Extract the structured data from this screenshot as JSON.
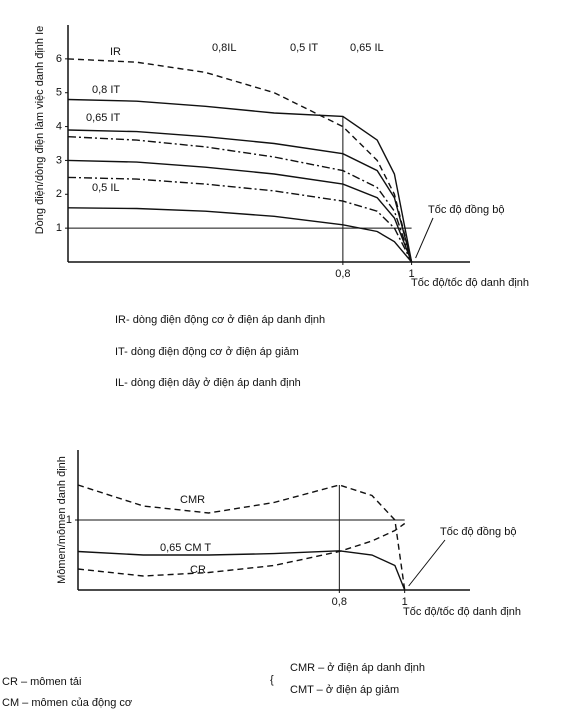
{
  "chart_data": [
    {
      "type": "line",
      "ylabel": "Dòng điện/dòng điện làm việc danh định Ie",
      "xlabel": "Tốc độ/tốc độ danh định",
      "annotation": "Tốc độ đồng bộ",
      "x": [
        0,
        0.2,
        0.4,
        0.6,
        0.8,
        0.9,
        0.95,
        1
      ],
      "xlim": [
        0,
        1.17
      ],
      "ylim": [
        0,
        7
      ],
      "xticks": [
        {
          "value": 0.8,
          "label": "0,8"
        },
        1
      ],
      "yticks": [
        1,
        2,
        3,
        4,
        5,
        6
      ],
      "series": [
        {
          "name": "IR",
          "color": "#111",
          "line_style": "dashed",
          "values": [
            6,
            5.9,
            5.6,
            5.0,
            4.0,
            3.0,
            2.0,
            0
          ]
        },
        {
          "name": "0,8 IT",
          "color": "#111",
          "line_style": "solid",
          "values": [
            4.8,
            4.75,
            4.6,
            4.4,
            4.3,
            3.6,
            2.6,
            0
          ]
        },
        {
          "name": "0,65 IT",
          "color": "#111",
          "line_style": "solid",
          "values": [
            3.9,
            3.85,
            3.7,
            3.5,
            3.2,
            2.7,
            1.9,
            0
          ]
        },
        {
          "name": "0,8IL",
          "color": "#111",
          "line_style": "dashdot",
          "values": [
            3.7,
            3.6,
            3.4,
            3.1,
            2.7,
            2.2,
            1.5,
            0
          ]
        },
        {
          "name": "0,5 IT",
          "color": "#111",
          "line_style": "solid",
          "values": [
            3.0,
            2.95,
            2.8,
            2.6,
            2.3,
            1.9,
            1.3,
            0
          ]
        },
        {
          "name": "0,65 IL",
          "color": "#111",
          "line_style": "dashdot",
          "values": [
            2.5,
            2.45,
            2.3,
            2.1,
            1.8,
            1.5,
            1.0,
            0
          ]
        },
        {
          "name": "0,5 IL",
          "color": "#111",
          "line_style": "solid",
          "values": [
            1.6,
            1.58,
            1.5,
            1.35,
            1.1,
            0.9,
            0.6,
            0
          ]
        }
      ],
      "notes": [
        "IR- dòng điện động cơ ở điện áp danh định",
        "IT- dòng điện động cơ ở điện áp giảm",
        "IL- dòng điện dây  ở điện áp danh định"
      ]
    },
    {
      "type": "line",
      "ylabel": "Mômen/mômen danh định",
      "xlabel": "Tốc độ/tốc độ danh định",
      "annotation": "Tốc độ đồng bộ",
      "x": [
        0,
        0.2,
        0.4,
        0.6,
        0.8,
        0.9,
        0.97,
        1
      ],
      "xlim": [
        0,
        1.2
      ],
      "ylim": [
        0,
        2
      ],
      "xticks": [
        {
          "value": 0.8,
          "label": "0,8"
        },
        1
      ],
      "yticks": [
        1
      ],
      "series": [
        {
          "name": "CMR",
          "color": "#111",
          "line_style": "dashed",
          "values": [
            1.5,
            1.2,
            1.1,
            1.25,
            1.5,
            1.35,
            1.0,
            0
          ]
        },
        {
          "name": "0,65 CM T",
          "color": "#111",
          "line_style": "solid",
          "values": [
            0.55,
            0.5,
            0.5,
            0.52,
            0.56,
            0.5,
            0.35,
            0
          ]
        },
        {
          "name": "CR",
          "color": "#111",
          "line_style": "dashed",
          "values": [
            0.3,
            0.2,
            0.25,
            0.35,
            0.55,
            0.7,
            0.85,
            0.95
          ]
        }
      ],
      "notes": [
        "CR – mômen tải",
        "CM – mômen của động cơ",
        "CMR – ở điện áp danh định",
        "CMT – ở điện áp giảm"
      ]
    }
  ]
}
